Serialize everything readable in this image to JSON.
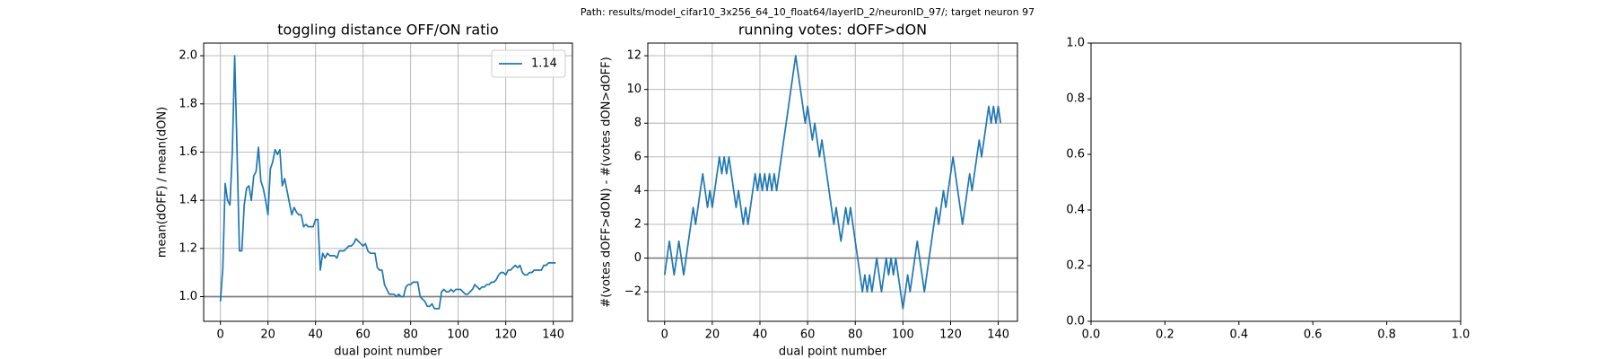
{
  "suptitle": "Path: results/model_cifar10_3x256_64_10_float64/layerID_2/neuronID_97/; target neuron 97",
  "chart_data": [
    {
      "type": "line",
      "title": "toggling distance OFF/ON ratio",
      "xlabel": "dual point number",
      "ylabel": "mean(dOFF) / mean(dON)",
      "x": [
        0,
        1,
        2,
        3,
        4,
        5,
        6,
        7,
        8,
        9,
        10,
        11,
        12,
        13,
        14,
        15,
        16,
        17,
        18,
        19,
        20,
        21,
        22,
        23,
        24,
        25,
        26,
        27,
        28,
        29,
        30,
        31,
        32,
        33,
        34,
        35,
        36,
        37,
        38,
        39,
        40,
        41,
        42,
        43,
        44,
        45,
        46,
        47,
        48,
        49,
        50,
        51,
        52,
        53,
        54,
        55,
        56,
        57,
        58,
        59,
        60,
        61,
        62,
        63,
        64,
        65,
        66,
        67,
        68,
        69,
        70,
        71,
        72,
        73,
        74,
        75,
        76,
        77,
        78,
        79,
        80,
        81,
        82,
        83,
        84,
        85,
        86,
        87,
        88,
        89,
        90,
        91,
        92,
        93,
        94,
        95,
        96,
        97,
        98,
        99,
        100,
        101,
        102,
        103,
        104,
        105,
        106,
        107,
        108,
        109,
        110,
        111,
        112,
        113,
        114,
        115,
        116,
        117,
        118,
        119,
        120,
        121,
        122,
        123,
        124,
        125,
        126,
        127,
        128,
        129,
        130,
        131,
        132,
        133,
        134,
        135,
        136,
        137,
        138,
        139,
        140,
        141
      ],
      "series": [
        {
          "name": "1.14",
          "color": "#1f77b4",
          "values": [
            0.98,
            1.12,
            1.47,
            1.4,
            1.38,
            1.6,
            2.0,
            1.6,
            1.19,
            1.19,
            1.38,
            1.45,
            1.46,
            1.4,
            1.5,
            1.52,
            1.62,
            1.48,
            1.45,
            1.4,
            1.34,
            1.53,
            1.56,
            1.61,
            1.59,
            1.61,
            1.46,
            1.49,
            1.44,
            1.39,
            1.34,
            1.37,
            1.35,
            1.34,
            1.34,
            1.29,
            1.3,
            1.29,
            1.29,
            1.29,
            1.32,
            1.32,
            1.11,
            1.18,
            1.16,
            1.18,
            1.17,
            1.17,
            1.17,
            1.16,
            1.19,
            1.19,
            1.19,
            1.2,
            1.21,
            1.21,
            1.22,
            1.24,
            1.23,
            1.22,
            1.21,
            1.22,
            1.19,
            1.18,
            1.18,
            1.18,
            1.12,
            1.11,
            1.11,
            1.05,
            1.03,
            1.01,
            1.01,
            1.01,
            1.0,
            1.01,
            1.0,
            1.0,
            1.04,
            1.05,
            1.05,
            1.06,
            1.06,
            1.06,
            1.0,
            0.99,
            0.98,
            0.96,
            0.96,
            0.97,
            0.95,
            0.95,
            0.95,
            1.02,
            1.03,
            1.02,
            1.02,
            1.03,
            1.02,
            1.03,
            1.03,
            1.03,
            1.02,
            1.01,
            1.01,
            1.02,
            1.03,
            1.05,
            1.04,
            1.03,
            1.04,
            1.04,
            1.05,
            1.05,
            1.06,
            1.06,
            1.07,
            1.09,
            1.1,
            1.1,
            1.09,
            1.11,
            1.11,
            1.12,
            1.13,
            1.12,
            1.13,
            1.1,
            1.09,
            1.09,
            1.1,
            1.1,
            1.11,
            1.11,
            1.11,
            1.11,
            1.13,
            1.13,
            1.14,
            1.14,
            1.14,
            1.14
          ]
        }
      ],
      "hline": 1,
      "hline_color": "#808080",
      "xlim": [
        -7.05,
        148.05
      ],
      "xticks": [
        0,
        20,
        40,
        60,
        80,
        100,
        120,
        140
      ],
      "ylim": [
        0.8975,
        2.0525
      ],
      "yticks": [
        {
          "value": 1,
          "label": "1.0"
        },
        {
          "value": 1.2,
          "label": "1.2"
        },
        {
          "value": 1.4,
          "label": "1.4"
        },
        {
          "value": 1.6,
          "label": "1.6"
        },
        {
          "value": 1.8,
          "label": "1.8"
        },
        {
          "value": 2,
          "label": "2.0"
        }
      ],
      "grid": true,
      "legend": "upper right"
    },
    {
      "type": "line",
      "title": "running votes: dOFF>dON",
      "xlabel": "dual point number",
      "ylabel": "#(votes dOFF>dON) - #(votes dON>dOFF)",
      "x": [
        0,
        1,
        2,
        3,
        4,
        5,
        6,
        7,
        8,
        9,
        10,
        11,
        12,
        13,
        14,
        15,
        16,
        17,
        18,
        19,
        20,
        21,
        22,
        23,
        24,
        25,
        26,
        27,
        28,
        29,
        30,
        31,
        32,
        33,
        34,
        35,
        36,
        37,
        38,
        39,
        40,
        41,
        42,
        43,
        44,
        45,
        46,
        47,
        48,
        49,
        50,
        51,
        52,
        53,
        54,
        55,
        56,
        57,
        58,
        59,
        60,
        61,
        62,
        63,
        64,
        65,
        66,
        67,
        68,
        69,
        70,
        71,
        72,
        73,
        74,
        75,
        76,
        77,
        78,
        79,
        80,
        81,
        82,
        83,
        84,
        85,
        86,
        87,
        88,
        89,
        90,
        91,
        92,
        93,
        94,
        95,
        96,
        97,
        98,
        99,
        100,
        101,
        102,
        103,
        104,
        105,
        106,
        107,
        108,
        109,
        110,
        111,
        112,
        113,
        114,
        115,
        116,
        117,
        118,
        119,
        120,
        121,
        122,
        123,
        124,
        125,
        126,
        127,
        128,
        129,
        130,
        131,
        132,
        133,
        134,
        135,
        136,
        137,
        138,
        139,
        140,
        141
      ],
      "series": [
        {
          "color": "#1f77b4",
          "values": [
            -1,
            0,
            1,
            0,
            -1,
            0,
            1,
            0,
            -1,
            0,
            1,
            2,
            3,
            2,
            3,
            4,
            5,
            4,
            3,
            4,
            3,
            4,
            5,
            6,
            5,
            6,
            5,
            6,
            5,
            4,
            3,
            4,
            3,
            2,
            3,
            2,
            3,
            4,
            5,
            4,
            5,
            4,
            5,
            4,
            5,
            4,
            5,
            4,
            5,
            6,
            7,
            8,
            9,
            10,
            11,
            12,
            11,
            10,
            9,
            8,
            9,
            8,
            7,
            8,
            7,
            6,
            7,
            6,
            5,
            4,
            3,
            2,
            3,
            2,
            1,
            2,
            3,
            2,
            3,
            2,
            1,
            0,
            -1,
            -2,
            -1,
            -2,
            -1,
            -2,
            -1,
            0,
            -1,
            -2,
            -1,
            0,
            -1,
            0,
            -1,
            0,
            -1,
            -2,
            -3,
            -2,
            -1,
            -2,
            -1,
            0,
            1,
            0,
            -1,
            -2,
            -1,
            0,
            1,
            2,
            3,
            2,
            3,
            4,
            3,
            4,
            5,
            6,
            5,
            4,
            3,
            2,
            3,
            4,
            5,
            4,
            5,
            6,
            7,
            6,
            7,
            8,
            9,
            8,
            9,
            8,
            9,
            8
          ]
        }
      ],
      "hline": 0,
      "hline_color": "#808080",
      "xlim": [
        -7.05,
        148.05
      ],
      "xticks": [
        0,
        20,
        40,
        60,
        80,
        100,
        120,
        140
      ],
      "ylim": [
        -3.75,
        12.75
      ],
      "yticks": [
        {
          "value": -2,
          "label": "−2"
        },
        0,
        2,
        4,
        6,
        8,
        10,
        12
      ],
      "grid": true
    },
    {
      "type": "axes",
      "xlim": [
        0,
        1
      ],
      "xticks": [
        {
          "value": 0,
          "label": "0.0"
        },
        {
          "value": 0.2,
          "label": "0.2"
        },
        {
          "value": 0.4,
          "label": "0.4"
        },
        {
          "value": 0.6,
          "label": "0.6"
        },
        {
          "value": 0.8,
          "label": "0.8"
        },
        {
          "value": 1,
          "label": "1.0"
        }
      ],
      "ylim": [
        0,
        1
      ],
      "yticks": [
        {
          "value": 0,
          "label": "0.0"
        },
        {
          "value": 0.2,
          "label": "0.2"
        },
        {
          "value": 0.4,
          "label": "0.4"
        },
        {
          "value": 0.6,
          "label": "0.6"
        },
        {
          "value": 0.8,
          "label": "0.8"
        },
        {
          "value": 1,
          "label": "1.0"
        }
      ],
      "grid": false
    }
  ]
}
